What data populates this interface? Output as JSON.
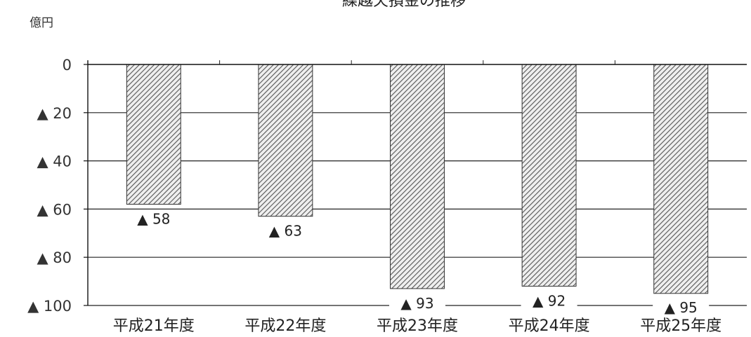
{
  "chart_data": {
    "type": "bar",
    "title": "繰越欠損金の推移",
    "ylabel": "億円",
    "xlabel": "",
    "categories": [
      "平成21年度",
      "平成22年度",
      "平成23年度",
      "平成24年度",
      "平成25年度"
    ],
    "values": [
      -58,
      -63,
      -93,
      -92,
      -95
    ],
    "data_labels": [
      "▲ 58",
      "▲ 63",
      "▲ 93",
      "▲ 92",
      "▲ 95"
    ],
    "ylim": [
      -100,
      0
    ],
    "y_ticks": [
      0,
      -20,
      -40,
      -60,
      -80,
      -100
    ],
    "y_tick_labels": [
      "0",
      "▲ 20",
      "▲ 40",
      "▲ 60",
      "▲ 80",
      "▲ 100"
    ],
    "negative_marker": "▲",
    "bar_fill": "diagonal-hatch",
    "bar_color": "#6f6f6f",
    "grid": true,
    "legend": "none"
  }
}
